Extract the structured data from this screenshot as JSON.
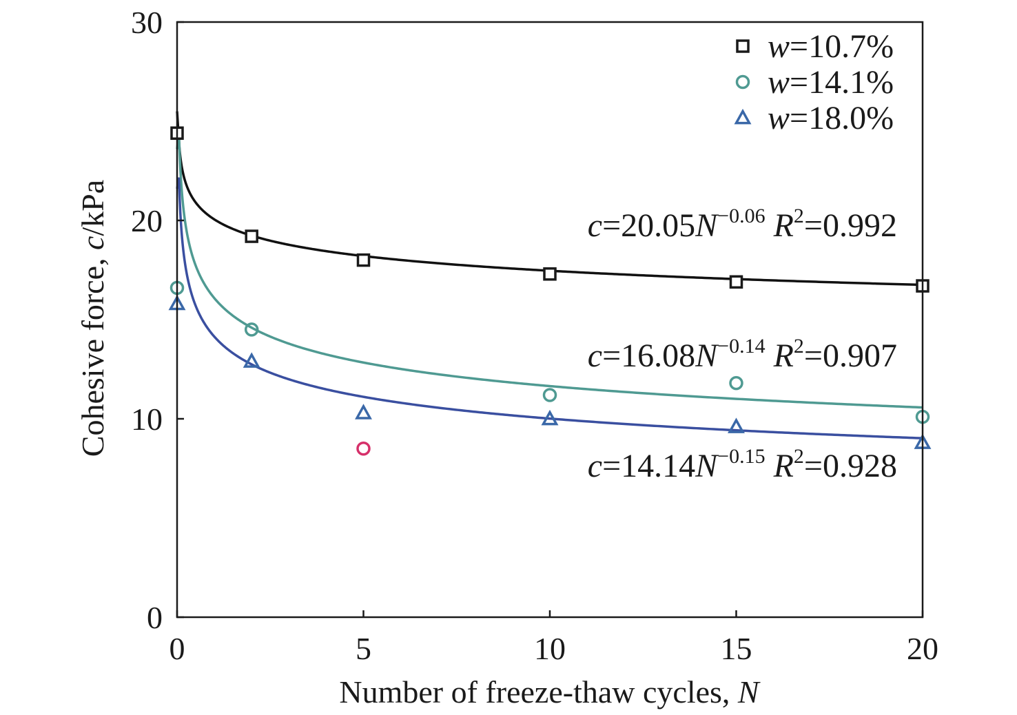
{
  "chart_data": {
    "type": "scatter",
    "xlabel": {
      "text": "Number of freeze-thaw cycles, ",
      "var": "N"
    },
    "ylabel": {
      "text": "Cohesive force, ",
      "var": "c",
      "unit": "/kPa"
    },
    "xlim": [
      0,
      20
    ],
    "ylim": [
      0,
      30
    ],
    "xticks": [
      "0",
      "5",
      "10",
      "15",
      "20"
    ],
    "yticks": [
      "0",
      "10",
      "20",
      "30"
    ],
    "grid": false,
    "legend_position": "top-right",
    "series": [
      {
        "name": "w=10.7%",
        "name_var": "w",
        "name_rest": "=10.7%",
        "marker": "square",
        "color": "#1a1a1a",
        "x": [
          0,
          2,
          5,
          10,
          15,
          20
        ],
        "y": [
          24.4,
          19.2,
          18.0,
          17.3,
          16.9,
          16.7
        ],
        "fit": {
          "a": 20.05,
          "b": -0.06,
          "r2": "0.992",
          "x_start": 0.05,
          "y_at_start": 25.5
        },
        "equation": {
          "var": "c",
          "eq": "=20.05",
          "N": "N",
          "exp": "−0.06",
          "R": "R",
          "r_exp": "2",
          "r_val": "=0.992"
        }
      },
      {
        "name": "w=14.1%",
        "name_var": "w",
        "name_rest": "=14.1%",
        "marker": "circle",
        "color": "#4f9a92",
        "x": [
          0,
          2,
          10,
          15,
          20
        ],
        "y": [
          16.6,
          14.5,
          11.2,
          11.8,
          10.1
        ],
        "fit": {
          "a": 16.08,
          "b": -0.14,
          "r2": "0.907",
          "x_start": 0.05,
          "y_at_start": 23.6
        },
        "equation": {
          "var": "c",
          "eq": "=16.08",
          "N": "N",
          "exp": "−0.14",
          "R": "R",
          "r_exp": "2",
          "r_val": "=0.907"
        }
      },
      {
        "name": "w=18.0%",
        "name_var": "w",
        "name_rest": "=18.0%",
        "marker": "triangle",
        "color": "#3a68a8",
        "x": [
          0,
          2,
          5,
          10,
          15,
          20
        ],
        "y": [
          15.8,
          12.9,
          10.3,
          10.0,
          9.6,
          8.8
        ],
        "fit": {
          "a": 14.14,
          "b": -0.15,
          "r2": "0.928",
          "x_start": 0.05,
          "y_at_start": 21.6
        },
        "equation": {
          "var": "c",
          "eq": "=14.14",
          "N": "N",
          "exp": "−0.15",
          "R": "R",
          "r_exp": "2",
          "r_val": "=0.928"
        }
      }
    ],
    "outlier": {
      "x": 5,
      "y": 8.5,
      "marker": "circle",
      "color": "#d6306a"
    },
    "fit_line_colors": [
      "#111111",
      "#4f9a92",
      "#3a4fa0"
    ]
  }
}
